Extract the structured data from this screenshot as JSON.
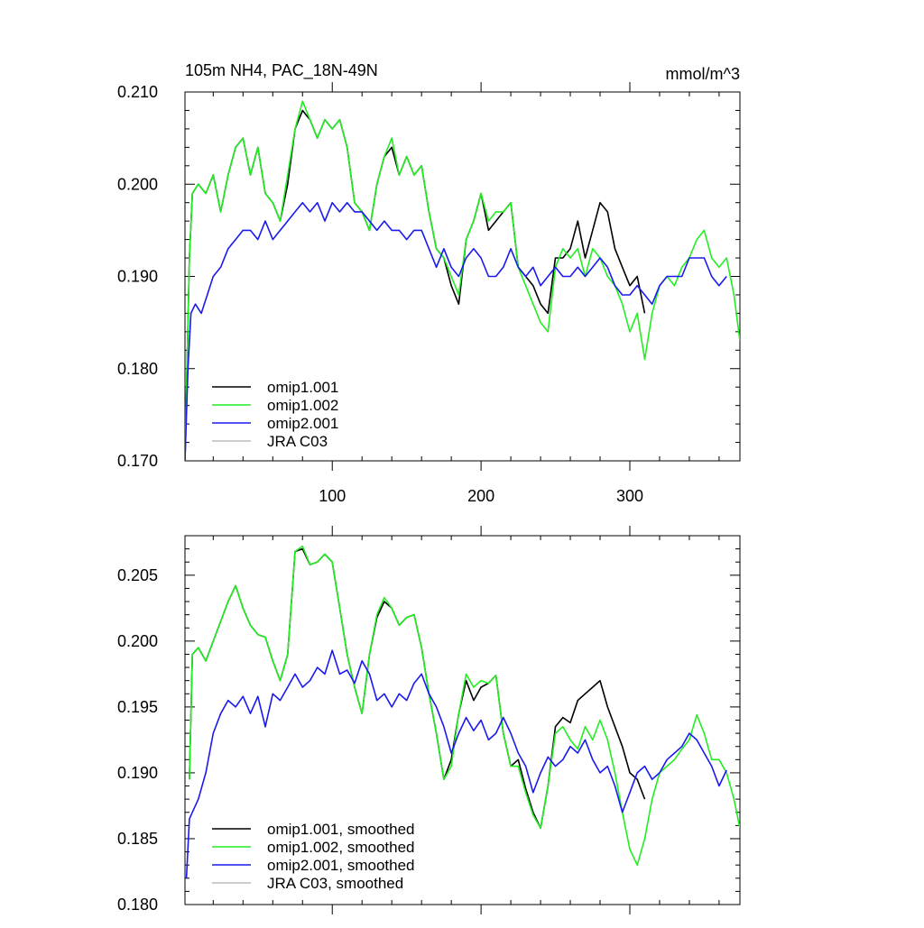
{
  "colors": {
    "omip1_001": "#000000",
    "omip1_002": "#22ee22",
    "omip2_001": "#1a1aee",
    "jra_c03": "#bbbbbb"
  },
  "chart_data": [
    {
      "type": "line",
      "title": "105m NH4, PAC_18N-49N",
      "units": "mmol/m^3",
      "xlabel": "",
      "ylabel": "",
      "xlim": [
        1,
        374
      ],
      "ylim": [
        0.17,
        0.21
      ],
      "x_ticks": [
        100,
        200,
        300
      ],
      "x_tick_labels": [
        "100",
        "200",
        "300"
      ],
      "y_ticks": [
        0.17,
        0.18,
        0.19,
        0.2,
        0.21
      ],
      "y_tick_labels": [
        "0.170",
        "0.180",
        "0.190",
        "0.200",
        "0.210"
      ],
      "legend_position": "bottom-left",
      "series": [
        {
          "key": "omip1_001",
          "name": "omip1.001",
          "x": [
            1,
            4,
            6,
            10,
            15,
            20,
            25,
            30,
            35,
            40,
            45,
            50,
            55,
            60,
            65,
            70,
            75,
            80,
            85,
            90,
            95,
            100,
            105,
            110,
            115,
            120,
            125,
            130,
            135,
            140,
            145,
            150,
            155,
            160,
            165,
            170,
            175,
            180,
            185,
            190,
            195,
            200,
            205,
            210,
            215,
            220,
            225,
            230,
            235,
            240,
            245,
            250,
            255,
            260,
            265,
            270,
            275,
            280,
            285,
            290,
            295,
            300,
            305,
            310
          ],
          "y": [
            0.17,
            0.192,
            0.199,
            0.2,
            0.199,
            0.201,
            0.197,
            0.201,
            0.204,
            0.205,
            0.201,
            0.204,
            0.199,
            0.198,
            0.196,
            0.2,
            0.206,
            0.208,
            0.207,
            0.205,
            0.207,
            0.206,
            0.207,
            0.204,
            0.198,
            0.197,
            0.195,
            0.2,
            0.203,
            0.204,
            0.201,
            0.203,
            0.201,
            0.202,
            0.197,
            0.193,
            0.192,
            0.189,
            0.187,
            0.194,
            0.196,
            0.199,
            0.195,
            0.196,
            0.197,
            0.198,
            0.191,
            0.19,
            0.189,
            0.187,
            0.186,
            0.192,
            0.192,
            0.193,
            0.196,
            0.192,
            0.195,
            0.198,
            0.197,
            0.193,
            0.191,
            0.189,
            0.19,
            0.186
          ]
        },
        {
          "key": "omip1_002",
          "name": "omip1.002",
          "x": [
            1,
            4,
            6,
            10,
            15,
            20,
            25,
            30,
            35,
            40,
            45,
            50,
            55,
            60,
            65,
            70,
            75,
            80,
            85,
            90,
            95,
            100,
            105,
            110,
            115,
            120,
            125,
            130,
            135,
            140,
            145,
            150,
            155,
            160,
            165,
            170,
            175,
            180,
            185,
            190,
            195,
            200,
            205,
            210,
            215,
            220,
            225,
            230,
            235,
            240,
            245,
            250,
            255,
            260,
            265,
            270,
            275,
            280,
            285,
            290,
            295,
            300,
            305,
            310,
            315,
            320,
            325,
            330,
            335,
            340,
            345,
            350,
            355,
            360,
            365,
            370,
            374
          ],
          "y": [
            0.17,
            0.192,
            0.199,
            0.2,
            0.199,
            0.201,
            0.197,
            0.201,
            0.204,
            0.205,
            0.201,
            0.204,
            0.199,
            0.198,
            0.196,
            0.201,
            0.206,
            0.209,
            0.207,
            0.205,
            0.207,
            0.206,
            0.207,
            0.204,
            0.198,
            0.197,
            0.195,
            0.2,
            0.203,
            0.205,
            0.201,
            0.203,
            0.201,
            0.202,
            0.197,
            0.193,
            0.192,
            0.19,
            0.188,
            0.194,
            0.196,
            0.199,
            0.196,
            0.197,
            0.197,
            0.198,
            0.191,
            0.189,
            0.187,
            0.185,
            0.184,
            0.191,
            0.193,
            0.192,
            0.193,
            0.19,
            0.193,
            0.192,
            0.19,
            0.189,
            0.187,
            0.184,
            0.186,
            0.181,
            0.186,
            0.189,
            0.19,
            0.189,
            0.191,
            0.192,
            0.194,
            0.195,
            0.192,
            0.191,
            0.192,
            0.188,
            0.183
          ]
        },
        {
          "key": "omip2_001",
          "name": "omip2.001",
          "x": [
            1,
            3,
            5,
            8,
            12,
            16,
            20,
            25,
            30,
            35,
            40,
            45,
            50,
            55,
            60,
            65,
            70,
            75,
            80,
            85,
            90,
            95,
            100,
            105,
            110,
            115,
            120,
            125,
            130,
            135,
            140,
            145,
            150,
            155,
            160,
            165,
            170,
            175,
            180,
            185,
            190,
            195,
            200,
            205,
            210,
            215,
            220,
            225,
            230,
            235,
            240,
            245,
            250,
            255,
            260,
            265,
            270,
            275,
            280,
            285,
            290,
            295,
            300,
            305,
            310,
            315,
            320,
            325,
            330,
            335,
            340,
            345,
            350,
            355,
            360,
            365
          ],
          "y": [
            0.17,
            0.18,
            0.186,
            0.187,
            0.186,
            0.188,
            0.19,
            0.191,
            0.193,
            0.194,
            0.195,
            0.195,
            0.194,
            0.196,
            0.194,
            0.195,
            0.196,
            0.197,
            0.198,
            0.197,
            0.198,
            0.196,
            0.198,
            0.197,
            0.198,
            0.197,
            0.197,
            0.196,
            0.195,
            0.196,
            0.195,
            0.195,
            0.194,
            0.195,
            0.195,
            0.193,
            0.191,
            0.193,
            0.191,
            0.19,
            0.192,
            0.193,
            0.192,
            0.19,
            0.19,
            0.191,
            0.193,
            0.191,
            0.19,
            0.191,
            0.189,
            0.19,
            0.191,
            0.19,
            0.19,
            0.191,
            0.19,
            0.191,
            0.192,
            0.191,
            0.189,
            0.188,
            0.188,
            0.189,
            0.188,
            0.187,
            0.189,
            0.19,
            0.19,
            0.19,
            0.192,
            0.192,
            0.192,
            0.19,
            0.189,
            0.19
          ]
        },
        {
          "key": "jra_c03",
          "name": "JRA C03",
          "x": [],
          "y": []
        }
      ]
    },
    {
      "type": "line",
      "title": "",
      "xlabel": "",
      "ylabel": "",
      "xlim": [
        1,
        374
      ],
      "ylim": [
        0.18,
        0.208
      ],
      "x_ticks": [
        100,
        200,
        300
      ],
      "x_tick_labels": [],
      "y_ticks": [
        0.18,
        0.185,
        0.19,
        0.195,
        0.2,
        0.205
      ],
      "y_tick_labels": [
        "0.180",
        "0.185",
        "0.190",
        "0.195",
        "0.200",
        "0.205"
      ],
      "legend_position": "bottom-left",
      "series": [
        {
          "key": "omip1_001",
          "name": "omip1.001, smoothed",
          "x": [
            4,
            6,
            10,
            15,
            20,
            25,
            30,
            35,
            40,
            45,
            50,
            55,
            60,
            65,
            70,
            75,
            80,
            85,
            90,
            95,
            100,
            105,
            110,
            115,
            120,
            125,
            130,
            135,
            140,
            145,
            150,
            155,
            160,
            165,
            170,
            175,
            180,
            185,
            190,
            195,
            200,
            205,
            210,
            215,
            220,
            225,
            230,
            235,
            240,
            245,
            250,
            255,
            260,
            265,
            270,
            275,
            280,
            285,
            290,
            295,
            300,
            305,
            310
          ],
          "y": [
            0.1895,
            0.199,
            0.1995,
            0.1985,
            0.2,
            0.2015,
            0.203,
            0.2042,
            0.2025,
            0.2012,
            0.2005,
            0.2003,
            0.1985,
            0.197,
            0.199,
            0.2068,
            0.207,
            0.2058,
            0.206,
            0.2066,
            0.206,
            0.2025,
            0.199,
            0.1965,
            0.1945,
            0.199,
            0.2018,
            0.203,
            0.2025,
            0.2012,
            0.2018,
            0.202,
            0.1995,
            0.196,
            0.193,
            0.1895,
            0.191,
            0.1945,
            0.197,
            0.1955,
            0.1965,
            0.1968,
            0.1974,
            0.193,
            0.1905,
            0.191,
            0.1888,
            0.187,
            0.1858,
            0.189,
            0.1935,
            0.1942,
            0.1938,
            0.1955,
            0.196,
            0.1965,
            0.197,
            0.195,
            0.1935,
            0.192,
            0.19,
            0.1895,
            0.188
          ]
        },
        {
          "key": "omip1_002",
          "name": "omip1.002, smoothed",
          "x": [
            4,
            6,
            10,
            15,
            20,
            25,
            30,
            35,
            40,
            45,
            50,
            55,
            60,
            65,
            70,
            75,
            80,
            85,
            90,
            95,
            100,
            105,
            110,
            115,
            120,
            125,
            130,
            135,
            140,
            145,
            150,
            155,
            160,
            165,
            170,
            175,
            180,
            185,
            190,
            195,
            200,
            205,
            210,
            215,
            220,
            225,
            230,
            235,
            240,
            245,
            250,
            255,
            260,
            265,
            270,
            275,
            280,
            285,
            290,
            295,
            300,
            305,
            310,
            315,
            320,
            325,
            330,
            335,
            340,
            345,
            350,
            355,
            360,
            365,
            370,
            374
          ],
          "y": [
            0.1895,
            0.199,
            0.1995,
            0.1985,
            0.2,
            0.2015,
            0.203,
            0.2042,
            0.2025,
            0.2012,
            0.2005,
            0.2003,
            0.1985,
            0.197,
            0.199,
            0.2068,
            0.2072,
            0.2058,
            0.206,
            0.2066,
            0.206,
            0.2025,
            0.199,
            0.1965,
            0.1945,
            0.199,
            0.202,
            0.2033,
            0.2025,
            0.2012,
            0.2018,
            0.202,
            0.1995,
            0.196,
            0.193,
            0.1895,
            0.1905,
            0.1945,
            0.1975,
            0.1965,
            0.197,
            0.1968,
            0.1974,
            0.193,
            0.1905,
            0.1905,
            0.1885,
            0.1868,
            0.1858,
            0.189,
            0.193,
            0.1935,
            0.1925,
            0.1918,
            0.1935,
            0.1925,
            0.194,
            0.1925,
            0.19,
            0.187,
            0.1842,
            0.183,
            0.185,
            0.188,
            0.19,
            0.1905,
            0.191,
            0.1918,
            0.1925,
            0.1944,
            0.193,
            0.191,
            0.191,
            0.19,
            0.188,
            0.1858
          ]
        },
        {
          "key": "omip2_001",
          "name": "omip2.001, smoothed",
          "x": [
            2,
            4,
            6,
            10,
            15,
            20,
            25,
            30,
            35,
            40,
            45,
            50,
            55,
            60,
            65,
            70,
            75,
            80,
            85,
            90,
            95,
            100,
            105,
            110,
            115,
            120,
            125,
            130,
            135,
            140,
            145,
            150,
            155,
            160,
            165,
            170,
            175,
            180,
            185,
            190,
            195,
            200,
            205,
            210,
            215,
            220,
            225,
            230,
            235,
            240,
            245,
            250,
            255,
            260,
            265,
            270,
            275,
            280,
            285,
            290,
            295,
            300,
            305,
            310,
            315,
            320,
            325,
            330,
            335,
            340,
            345,
            350,
            355,
            360,
            365
          ],
          "y": [
            0.182,
            0.1865,
            0.187,
            0.188,
            0.19,
            0.193,
            0.1945,
            0.1955,
            0.195,
            0.1958,
            0.1945,
            0.1958,
            0.1935,
            0.196,
            0.1955,
            0.1965,
            0.1975,
            0.1965,
            0.197,
            0.198,
            0.1975,
            0.1993,
            0.1975,
            0.1978,
            0.1968,
            0.1985,
            0.1975,
            0.1955,
            0.196,
            0.195,
            0.196,
            0.1955,
            0.1968,
            0.1975,
            0.196,
            0.195,
            0.1935,
            0.1915,
            0.193,
            0.1942,
            0.1932,
            0.194,
            0.1925,
            0.193,
            0.1942,
            0.193,
            0.1915,
            0.1905,
            0.1885,
            0.19,
            0.1912,
            0.1905,
            0.191,
            0.192,
            0.1915,
            0.1925,
            0.191,
            0.19,
            0.1905,
            0.189,
            0.187,
            0.1885,
            0.19,
            0.1905,
            0.1895,
            0.19,
            0.191,
            0.1915,
            0.192,
            0.193,
            0.1925,
            0.1915,
            0.1905,
            0.189,
            0.1902
          ]
        },
        {
          "key": "jra_c03",
          "name": "JRA C03, smoothed",
          "x": [],
          "y": []
        }
      ]
    }
  ]
}
